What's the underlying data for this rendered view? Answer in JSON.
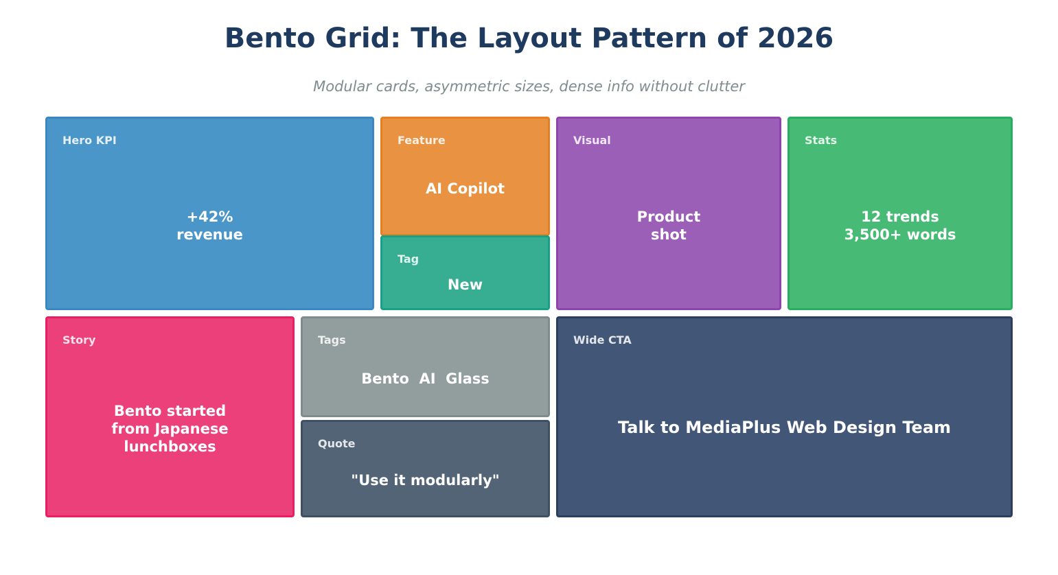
{
  "header": {
    "title": "Bento Grid: The Layout Pattern of 2026",
    "subtitle": "Modular cards, asymmetric sizes, dense info without clutter"
  },
  "cards": {
    "hero_kpi": {
      "label": "Hero KPI",
      "body": "+42%\nrevenue",
      "fill": "#4a96c9",
      "border": "#3b87c4"
    },
    "feature": {
      "label": "Feature",
      "body": "AI Copilot",
      "fill": "#e89242",
      "border": "#e67e22"
    },
    "tag": {
      "label": "Tag",
      "body": "New",
      "fill": "#37ad92",
      "border": "#16a085"
    },
    "visual": {
      "label": "Visual",
      "body": "Product\nshot",
      "fill": "#9c5fb8",
      "border": "#8e44ad"
    },
    "stats": {
      "label": "Stats",
      "body": "12 trends\n3,500+ words",
      "fill": "#47ba75",
      "border": "#27ae60"
    },
    "story": {
      "label": "Story",
      "body": "Bento started\nfrom Japanese\nlunchboxes",
      "fill": "#ec407a",
      "border": "#e91e63"
    },
    "tags": {
      "label": "Tags",
      "body": "Bento  AI  Glass",
      "fill": "#929d9d",
      "border": "#7f8c8d"
    },
    "quote": {
      "label": "Quote",
      "body": "\"Use it modularly\"",
      "fill": "#536476",
      "border": "#3f5064"
    },
    "wide_cta": {
      "label": "Wide CTA",
      "body": "Talk to MediaPlus Web Design Team",
      "fill": "#425777",
      "border": "#2c3e5e"
    }
  }
}
